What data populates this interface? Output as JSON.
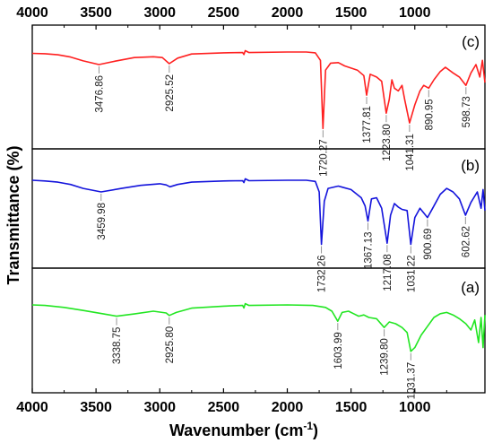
{
  "chart_data": {
    "type": "line",
    "xlabel": "Wavenumber (cm",
    "xlabel_sup": "-1",
    "xlabel_end": ")",
    "ylabel": "Transmittance (%)",
    "xlim": [
      4000,
      450
    ],
    "x_ticks": [
      4000,
      3500,
      3000,
      2500,
      2000,
      1500,
      1000
    ],
    "x_tick_labels": [
      "4000",
      "3500",
      "3000",
      "2500",
      "2000",
      "1500",
      "1000"
    ],
    "top_ticks": [
      4000,
      3500,
      3000,
      2500,
      2000,
      1500,
      1000
    ],
    "top_tick_labels": [
      "4000",
      "3500",
      "3000",
      "2500",
      "2000",
      "1500",
      "1000"
    ],
    "panels": [
      {
        "label": "(c)",
        "color": "#ff2020",
        "spectrum": [
          [
            4000,
            0.05
          ],
          [
            3900,
            0.06
          ],
          [
            3800,
            0.1
          ],
          [
            3700,
            0.18
          ],
          [
            3600,
            0.32
          ],
          [
            3476.86,
            0.45
          ],
          [
            3350,
            0.33
          ],
          [
            3200,
            0.2
          ],
          [
            3050,
            0.17
          ],
          [
            2980,
            0.2
          ],
          [
            2925.52,
            0.42
          ],
          [
            2860,
            0.22
          ],
          [
            2750,
            0.07
          ],
          [
            2500,
            0.03
          ],
          [
            2350,
            0.02
          ],
          [
            2340,
            0.09
          ],
          [
            2330,
            -0.05
          ],
          [
            2300,
            0.02
          ],
          [
            2000,
            0.0
          ],
          [
            1850,
            0.0
          ],
          [
            1780,
            0.03
          ],
          [
            1740,
            0.3
          ],
          [
            1720.27,
            2.75
          ],
          [
            1700,
            0.65
          ],
          [
            1660,
            0.4
          ],
          [
            1600,
            0.38
          ],
          [
            1550,
            0.5
          ],
          [
            1450,
            0.65
          ],
          [
            1400,
            0.85
          ],
          [
            1377.81,
            1.55
          ],
          [
            1350,
            0.8
          ],
          [
            1300,
            0.9
          ],
          [
            1260,
            1.05
          ],
          [
            1223.8,
            2.2
          ],
          [
            1200,
            1.7
          ],
          [
            1180,
            1.0
          ],
          [
            1160,
            1.3
          ],
          [
            1130,
            1.4
          ],
          [
            1100,
            1.2
          ],
          [
            1080,
            1.7
          ],
          [
            1041.31,
            2.55
          ],
          [
            1000,
            1.9
          ],
          [
            960,
            1.4
          ],
          [
            930,
            1.2
          ],
          [
            890.95,
            1.3
          ],
          [
            850,
            1.0
          ],
          [
            800,
            0.7
          ],
          [
            760,
            0.55
          ],
          [
            700,
            0.75
          ],
          [
            650,
            0.9
          ],
          [
            598.73,
            1.2
          ],
          [
            560,
            0.75
          ],
          [
            520,
            0.45
          ],
          [
            490,
            0.9
          ],
          [
            470,
            0.3
          ],
          [
            450,
            1.1
          ]
        ]
      },
      {
        "label": "(b)",
        "color": "#1414dc",
        "spectrum": [
          [
            4000,
            0.0
          ],
          [
            3900,
            0.03
          ],
          [
            3800,
            0.08
          ],
          [
            3700,
            0.18
          ],
          [
            3600,
            0.35
          ],
          [
            3459.98,
            0.5
          ],
          [
            3300,
            0.35
          ],
          [
            3150,
            0.22
          ],
          [
            3000,
            0.15
          ],
          [
            2950,
            0.2
          ],
          [
            2920,
            0.28
          ],
          [
            2860,
            0.18
          ],
          [
            2750,
            0.08
          ],
          [
            2500,
            0.03
          ],
          [
            2350,
            0.02
          ],
          [
            2340,
            0.1
          ],
          [
            2330,
            -0.06
          ],
          [
            2300,
            0.02
          ],
          [
            2000,
            0.0
          ],
          [
            1850,
            0.0
          ],
          [
            1780,
            0.05
          ],
          [
            1750,
            0.5
          ],
          [
            1732.26,
            2.75
          ],
          [
            1710,
            0.9
          ],
          [
            1680,
            0.35
          ],
          [
            1600,
            0.25
          ],
          [
            1500,
            0.4
          ],
          [
            1420,
            0.75
          ],
          [
            1390,
            1.1
          ],
          [
            1367.13,
            1.75
          ],
          [
            1340,
            0.8
          ],
          [
            1300,
            0.75
          ],
          [
            1260,
            1.2
          ],
          [
            1217.08,
            2.7
          ],
          [
            1190,
            1.5
          ],
          [
            1160,
            1.0
          ],
          [
            1130,
            1.15
          ],
          [
            1100,
            1.25
          ],
          [
            1060,
            1.3
          ],
          [
            1031.22,
            2.75
          ],
          [
            1000,
            1.6
          ],
          [
            960,
            1.2
          ],
          [
            930,
            1.4
          ],
          [
            900.69,
            1.6
          ],
          [
            860,
            1.2
          ],
          [
            800,
            0.6
          ],
          [
            750,
            0.35
          ],
          [
            700,
            0.5
          ],
          [
            650,
            0.8
          ],
          [
            602.62,
            1.5
          ],
          [
            560,
            0.95
          ],
          [
            510,
            0.5
          ],
          [
            480,
            1.2
          ],
          [
            465,
            0.4
          ],
          [
            450,
            1.3
          ]
        ]
      },
      {
        "label": "(a)",
        "color": "#22e622",
        "spectrum": [
          [
            4000,
            0.0
          ],
          [
            3900,
            0.02
          ],
          [
            3750,
            0.1
          ],
          [
            3600,
            0.22
          ],
          [
            3450,
            0.35
          ],
          [
            3338.75,
            0.45
          ],
          [
            3200,
            0.36
          ],
          [
            3050,
            0.25
          ],
          [
            2950,
            0.32
          ],
          [
            2925.8,
            0.42
          ],
          [
            2870,
            0.3
          ],
          [
            2750,
            0.13
          ],
          [
            2500,
            0.05
          ],
          [
            2350,
            0.02
          ],
          [
            2340,
            0.12
          ],
          [
            2330,
            -0.05
          ],
          [
            2300,
            0.02
          ],
          [
            2000,
            0.0
          ],
          [
            1800,
            0.02
          ],
          [
            1700,
            0.1
          ],
          [
            1650,
            0.25
          ],
          [
            1603.99,
            0.65
          ],
          [
            1570,
            0.3
          ],
          [
            1520,
            0.25
          ],
          [
            1480,
            0.35
          ],
          [
            1440,
            0.45
          ],
          [
            1400,
            0.4
          ],
          [
            1360,
            0.5
          ],
          [
            1300,
            0.55
          ],
          [
            1239.8,
            0.9
          ],
          [
            1200,
            0.68
          ],
          [
            1150,
            0.75
          ],
          [
            1100,
            0.9
          ],
          [
            1060,
            1.1
          ],
          [
            1031.37,
            1.85
          ],
          [
            1000,
            1.7
          ],
          [
            950,
            1.2
          ],
          [
            900,
            0.85
          ],
          [
            850,
            0.5
          ],
          [
            800,
            0.35
          ],
          [
            750,
            0.3
          ],
          [
            700,
            0.4
          ],
          [
            650,
            0.55
          ],
          [
            600,
            0.75
          ],
          [
            560,
            1.0
          ],
          [
            530,
            0.6
          ],
          [
            500,
            1.5
          ],
          [
            480,
            0.5
          ],
          [
            465,
            1.7
          ],
          [
            450,
            0.4
          ]
        ]
      }
    ],
    "peaks": [
      {
        "panel": 0,
        "x": 3476.86,
        "label": "3476.86"
      },
      {
        "panel": 0,
        "x": 2925.52,
        "label": "2925.52"
      },
      {
        "panel": 0,
        "x": 1720.27,
        "label": "1720.27"
      },
      {
        "panel": 0,
        "x": 1377.81,
        "label": "1377.81"
      },
      {
        "panel": 0,
        "x": 1223.8,
        "label": "1223.80"
      },
      {
        "panel": 0,
        "x": 1041.31,
        "label": "1041.31"
      },
      {
        "panel": 0,
        "x": 890.95,
        "label": "890.95"
      },
      {
        "panel": 0,
        "x": 598.73,
        "label": "598.73"
      },
      {
        "panel": 1,
        "x": 3459.98,
        "label": "3459.98"
      },
      {
        "panel": 1,
        "x": 1732.26,
        "label": "1732.26"
      },
      {
        "panel": 1,
        "x": 1367.13,
        "label": "1367.13"
      },
      {
        "panel": 1,
        "x": 1217.08,
        "label": "1217.08"
      },
      {
        "panel": 1,
        "x": 1031.22,
        "label": "1031.22"
      },
      {
        "panel": 1,
        "x": 900.69,
        "label": "900.69"
      },
      {
        "panel": 1,
        "x": 602.62,
        "label": "602.62"
      },
      {
        "panel": 2,
        "x": 3338.75,
        "label": "3338.75"
      },
      {
        "panel": 2,
        "x": 2925.8,
        "label": "2925.80"
      },
      {
        "panel": 2,
        "x": 1603.99,
        "label": "1603.99"
      },
      {
        "panel": 2,
        "x": 1239.8,
        "label": "1239.80"
      },
      {
        "panel": 2,
        "x": 1031.37,
        "label": "1031.37"
      }
    ]
  }
}
